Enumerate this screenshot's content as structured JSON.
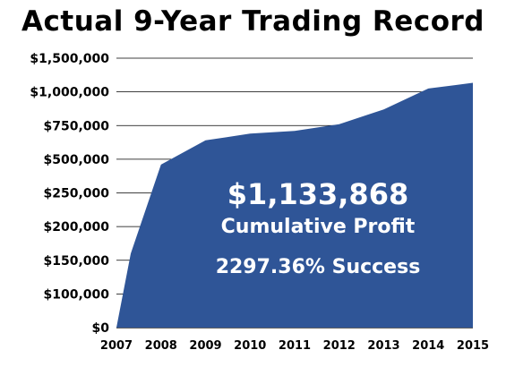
{
  "chart_data": {
    "type": "area",
    "title": "Actual 9-Year Trading Record",
    "xlabel": "",
    "ylabel": "",
    "y_ticks": [
      "$0",
      "$100,000",
      "$150,000",
      "$200,000",
      "$250,000",
      "$500,000",
      "$750,000",
      "$1,000,000",
      "$1,500,000"
    ],
    "categories": [
      "2007",
      "2008",
      "2009",
      "2010",
      "2011",
      "2012",
      "2013",
      "2014",
      "2015"
    ],
    "points": [
      {
        "x": "2007",
        "y": 0
      },
      {
        "x": "2007",
        "y": 160000
      },
      {
        "x": "2008",
        "y": 460000
      },
      {
        "x": "2009",
        "y": 640000
      },
      {
        "x": "2010",
        "y": 690000
      },
      {
        "x": "2011",
        "y": 710000
      },
      {
        "x": "2012",
        "y": 760000
      },
      {
        "x": "2013",
        "y": 870000
      },
      {
        "x": "2014",
        "y": 1050000
      },
      {
        "x": "2015",
        "y": 1133868
      }
    ],
    "grid": true,
    "fill_color": "#2f5597",
    "annotations": {
      "total": "$1,133,868",
      "total_label": "Cumulative Profit",
      "success": "2297.36% Success"
    }
  }
}
